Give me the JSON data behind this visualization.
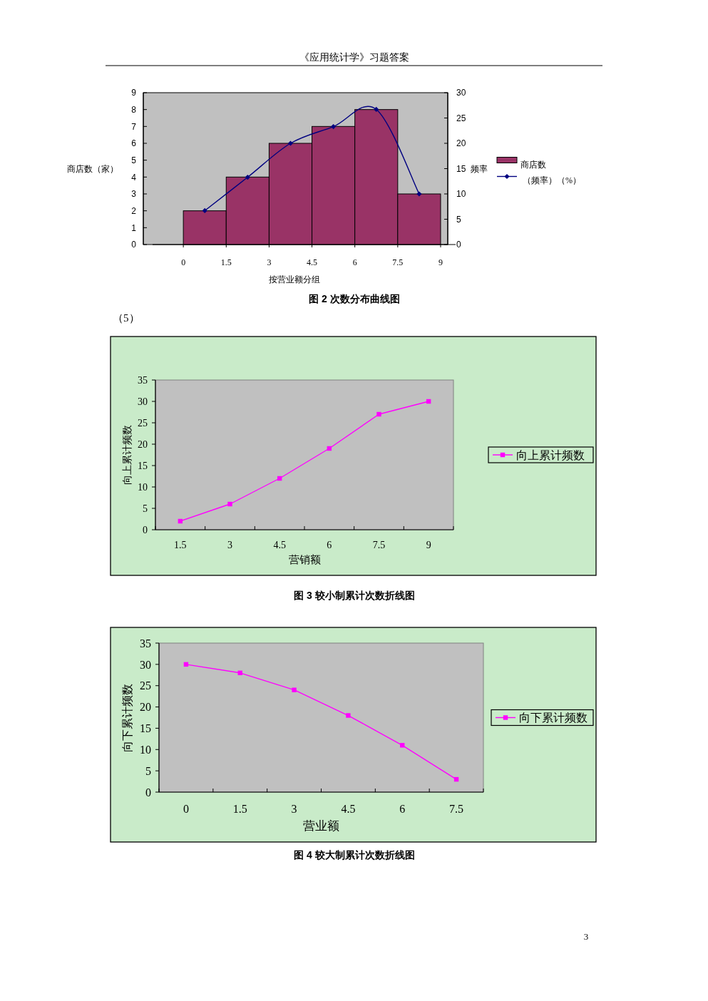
{
  "chart_data": [
    {
      "type": "histogram",
      "title": "图 2 次数分布曲线图",
      "xlabel": "按营业额分组",
      "ylabel": "商店数（家）",
      "y2label": "频率",
      "annotations": [
        "《应用统计学》习题答案"
      ],
      "bins": [
        0,
        1.5,
        3,
        4.5,
        6,
        7.5,
        9
      ],
      "series": [
        {
          "name": "商店数",
          "color": "#993366",
          "values": [
            2,
            4,
            6,
            7,
            8,
            3
          ]
        },
        {
          "name": "（频率）（%）",
          "type": "line",
          "axis": "y2",
          "color": "#000080",
          "marker": "diamond",
          "x": [
            0.75,
            2.25,
            3.75,
            5.25,
            6.75,
            8.25
          ],
          "values": [
            6.7,
            13.3,
            20,
            23.3,
            26.7,
            10
          ]
        }
      ],
      "xlim": [
        -1.4,
        9.25
      ],
      "xticks": [
        0,
        1.5,
        3,
        4.5,
        6,
        7.5,
        9
      ],
      "ylim": [
        0,
        9
      ],
      "yticks": [
        0,
        1,
        2,
        3,
        4,
        5,
        6,
        7,
        8,
        9
      ],
      "y2lim": [
        0,
        30
      ],
      "y2ticks": [
        0,
        5,
        10,
        15,
        20,
        25,
        30
      ],
      "legend": "right"
    },
    {
      "type": "line",
      "title": "图 3 较小制累计次数折线图",
      "xlabel": "营销额",
      "ylabel": "向上累计频数",
      "annotations": [
        "（5）"
      ],
      "categories": [
        "1.5",
        "3",
        "4.5",
        "6",
        "7.5",
        "9"
      ],
      "series": [
        {
          "name": "向上累计频数",
          "color": "#ff00ff",
          "values": [
            2,
            6,
            12,
            19,
            27,
            30
          ]
        }
      ],
      "ylim": [
        0,
        35
      ],
      "yticks": [
        0,
        5,
        10,
        15,
        20,
        25,
        30,
        35
      ],
      "marker": "square",
      "legend": "right"
    },
    {
      "type": "line",
      "title": "图 4 较大制累计次数折线图",
      "xlabel": "营业额",
      "ylabel": "向下累计频数",
      "annotations": [
        "3"
      ],
      "categories": [
        "0",
        "1.5",
        "3",
        "4.5",
        "6",
        "7.5"
      ],
      "series": [
        {
          "name": "向下累计频数",
          "color": "#ff00ff",
          "values": [
            30,
            28,
            24,
            18,
            11,
            3
          ]
        }
      ],
      "ylim": [
        0,
        35
      ],
      "yticks": [
        0,
        5,
        10,
        15,
        20,
        25,
        30,
        35
      ],
      "marker": "square",
      "legend": "right"
    }
  ]
}
